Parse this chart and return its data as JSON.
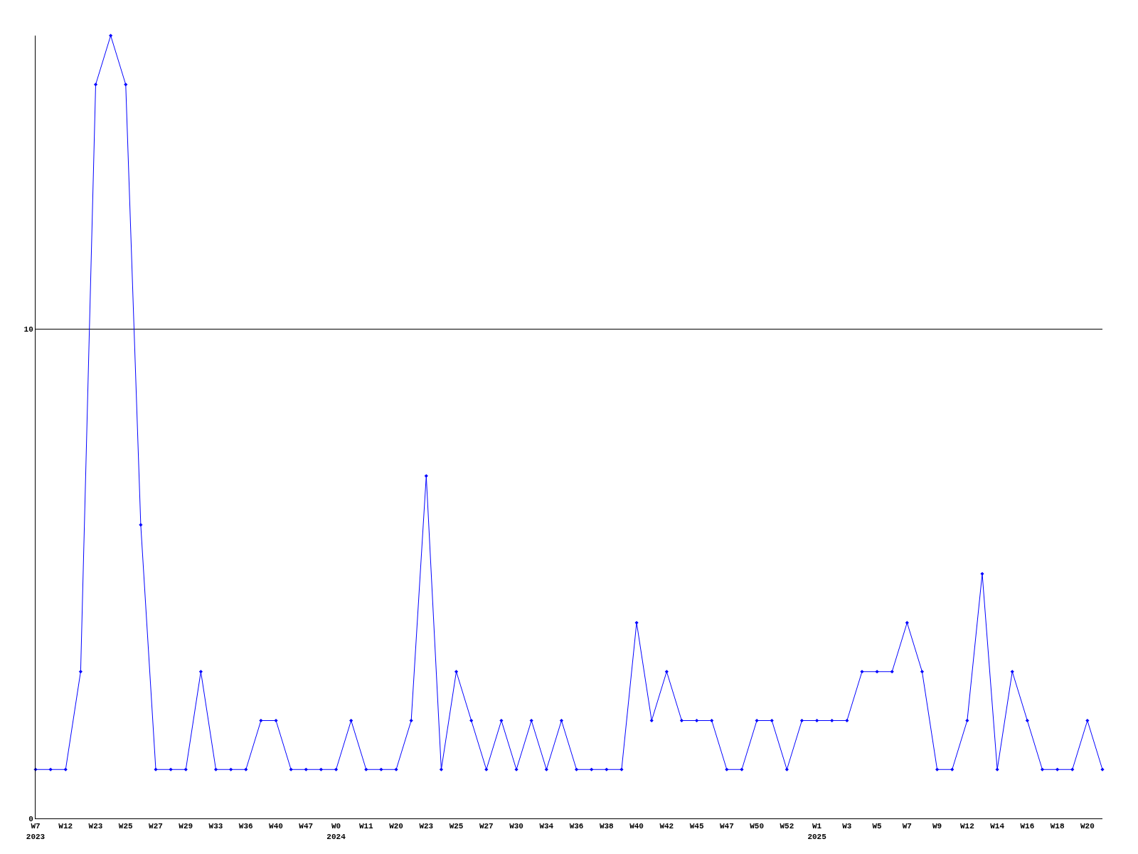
{
  "chart_data": {
    "type": "line",
    "categories": [
      "W7\n2023",
      null,
      "W12",
      null,
      "W23",
      null,
      "W25",
      null,
      "W27",
      null,
      "W29",
      null,
      "W33",
      null,
      "W36",
      null,
      "W40",
      null,
      "W47",
      null,
      "W0\n2024",
      null,
      "W11",
      null,
      "W20",
      null,
      "W23",
      null,
      "W25",
      null,
      "W27",
      null,
      "W30",
      null,
      "W34",
      null,
      "W36",
      null,
      "W38",
      null,
      "W40",
      null,
      "W42",
      null,
      "W45",
      null,
      "W47",
      null,
      "W50",
      null,
      "W52",
      null,
      "W1\n2025",
      null,
      "W3",
      null,
      "W5",
      null,
      "W7",
      null,
      "W9",
      null,
      "W12",
      null,
      "W14",
      null,
      "W16",
      null,
      "W18",
      null,
      "W20",
      null
    ],
    "series": [
      {
        "color": "#0000ff",
        "values": [
          1,
          1,
          1,
          3,
          15,
          16,
          15,
          6,
          1,
          1,
          1,
          3,
          1,
          1,
          1,
          2,
          2,
          1,
          1,
          1,
          1,
          2,
          1,
          1,
          1,
          2,
          7,
          1,
          3,
          2,
          1,
          2,
          1,
          2,
          1,
          2,
          1,
          1,
          1,
          1,
          4,
          2,
          3,
          2,
          2,
          2,
          1,
          1,
          2,
          2,
          1,
          2,
          2,
          2,
          2,
          3,
          3,
          3,
          4,
          3,
          1,
          1,
          2,
          5,
          1,
          3,
          2,
          1,
          1,
          1,
          2,
          1
        ]
      }
    ],
    "ylim": [
      0,
      16
    ],
    "yticks": [
      0,
      10
    ],
    "grid": "y",
    "marker": "diamond",
    "line_style": "solid",
    "legend": false
  }
}
